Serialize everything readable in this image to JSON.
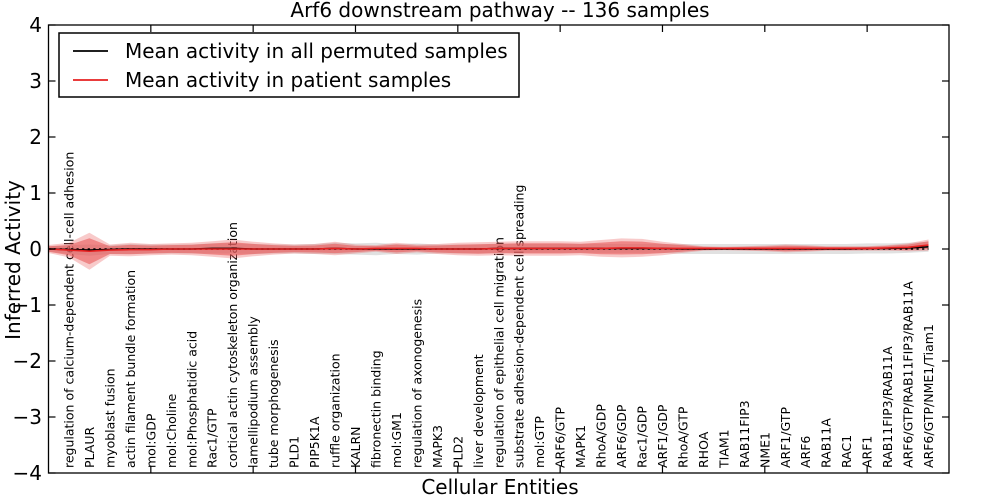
{
  "figure": {
    "title": "Arf6 downstream pathway -- 136 samples"
  },
  "chart_data": {
    "type": "line",
    "title": "Arf6 downstream pathway -- 136 samples",
    "xlabel": "Cellular Entities",
    "ylabel": "Inferred Activity",
    "ylim": [
      -4,
      4
    ],
    "xlim": [
      0,
      44
    ],
    "yticks": [
      4,
      3,
      2,
      1,
      0,
      -1,
      -2,
      -3,
      -4
    ],
    "ytick_labels": [
      "4",
      "3",
      "2",
      "1",
      "0",
      "−1",
      "−2",
      "−3",
      "−4"
    ],
    "xtick_major_positions": [
      5,
      10,
      15,
      20,
      25,
      30,
      35,
      40
    ],
    "grid": false,
    "legend_position": "upper left",
    "zero_line": {
      "value": 0,
      "color": "#000000",
      "style": "dotted"
    },
    "categories": [
      "regulation of calcium-dependent cell-cell adhesion",
      "PLAUR",
      "myoblast fusion",
      "actin filament bundle formation",
      "mol:GDP",
      "mol:Choline",
      "mol:Phosphatidic acid",
      "Rac1/GTP",
      "cortical actin cytoskeleton organization",
      "lamellipodium assembly",
      "tube morphogenesis",
      "PLD1",
      "PIP5K1A",
      "ruffle organization",
      "KALRN",
      "fibronectin binding",
      "mol:GM1",
      "regulation of axonogenesis",
      "MAPK3",
      "PLD2",
      "liver development",
      "regulation of epithelial cell migration",
      "substrate adhesion-dependent cell spreading",
      "mol:GTP",
      "ARF6/GTP",
      "MAPK1",
      "RhoA/GDP",
      "ARF6/GDP",
      "Rac1/GDP",
      "ARF1/GDP",
      "RhoA/GTP",
      "RHOA",
      "TIAM1",
      "RAB11FIP3",
      "NME1",
      "ARF1/GTP",
      "ARF6",
      "RAB11A",
      "RAC1",
      "ARF1",
      "RAB11FIP3/RAB11A",
      "ARF6/GTP/RAB11FIP3/RAB11A",
      "ARF6/GTP/NME1/Tiam1"
    ],
    "series": [
      {
        "name": "Mean activity in all permuted samples",
        "color": "#000000",
        "band_color": "#aaaaaa",
        "band_opacity": 0.35,
        "values": [
          -0.01,
          -0.02,
          -0.01,
          0,
          0,
          0,
          0,
          0.01,
          0.01,
          0,
          0,
          0,
          0,
          0.01,
          0,
          0,
          0,
          0,
          0,
          0,
          0,
          0.01,
          0.01,
          0.01,
          0.01,
          0.01,
          0.01,
          0.01,
          0.01,
          0.01,
          0,
          0,
          0,
          0,
          0,
          0,
          0,
          0,
          0,
          0.01,
          0.01,
          0.02,
          0.04
        ],
        "std": [
          0.08,
          0.1,
          0.08,
          0.09,
          0.08,
          0.08,
          0.08,
          0.09,
          0.09,
          0.09,
          0.08,
          0.08,
          0.09,
          0.1,
          0.1,
          0.11,
          0.09,
          0.1,
          0.08,
          0.08,
          0.08,
          0.08,
          0.08,
          0.08,
          0.08,
          0.08,
          0.08,
          0.08,
          0.08,
          0.08,
          0.09,
          0.09,
          0.09,
          0.09,
          0.09,
          0.09,
          0.09,
          0.09,
          0.09,
          0.09,
          0.09,
          0.09,
          0.09
        ]
      },
      {
        "name": "Mean activity in patient samples",
        "color": "#e62020",
        "band_color": "#e85050",
        "band_opacity_outer": 0.3,
        "band_opacity_inner": 0.55,
        "values": [
          -0.02,
          -0.04,
          -0.02,
          -0.01,
          -0.01,
          0,
          0,
          0,
          0,
          0,
          0,
          0,
          0,
          0.01,
          0,
          0.01,
          0.01,
          0.01,
          0,
          0,
          0,
          0.01,
          0.01,
          0.01,
          0.01,
          0.01,
          0.01,
          0.02,
          0.02,
          0.01,
          0.01,
          0.01,
          0.01,
          0.01,
          0.01,
          0.01,
          0.01,
          0.01,
          0.01,
          0.01,
          0.02,
          0.03,
          0.07
        ],
        "std": [
          0.13,
          0.33,
          0.1,
          0.12,
          0.1,
          0.1,
          0.11,
          0.14,
          0.17,
          0.13,
          0.1,
          0.08,
          0.09,
          0.12,
          0.08,
          0.06,
          0.1,
          0.07,
          0.09,
          0.11,
          0.12,
          0.12,
          0.13,
          0.13,
          0.13,
          0.12,
          0.15,
          0.17,
          0.16,
          0.12,
          0.08,
          0.04,
          0.03,
          0.04,
          0.05,
          0.07,
          0.06,
          0.04,
          0.04,
          0.04,
          0.05,
          0.07,
          0.1
        ]
      }
    ]
  },
  "legend": {
    "items": [
      {
        "label": "Mean activity in all permuted samples",
        "color": "#000000"
      },
      {
        "label": "Mean activity in patient samples",
        "color": "#e62020"
      }
    ]
  }
}
